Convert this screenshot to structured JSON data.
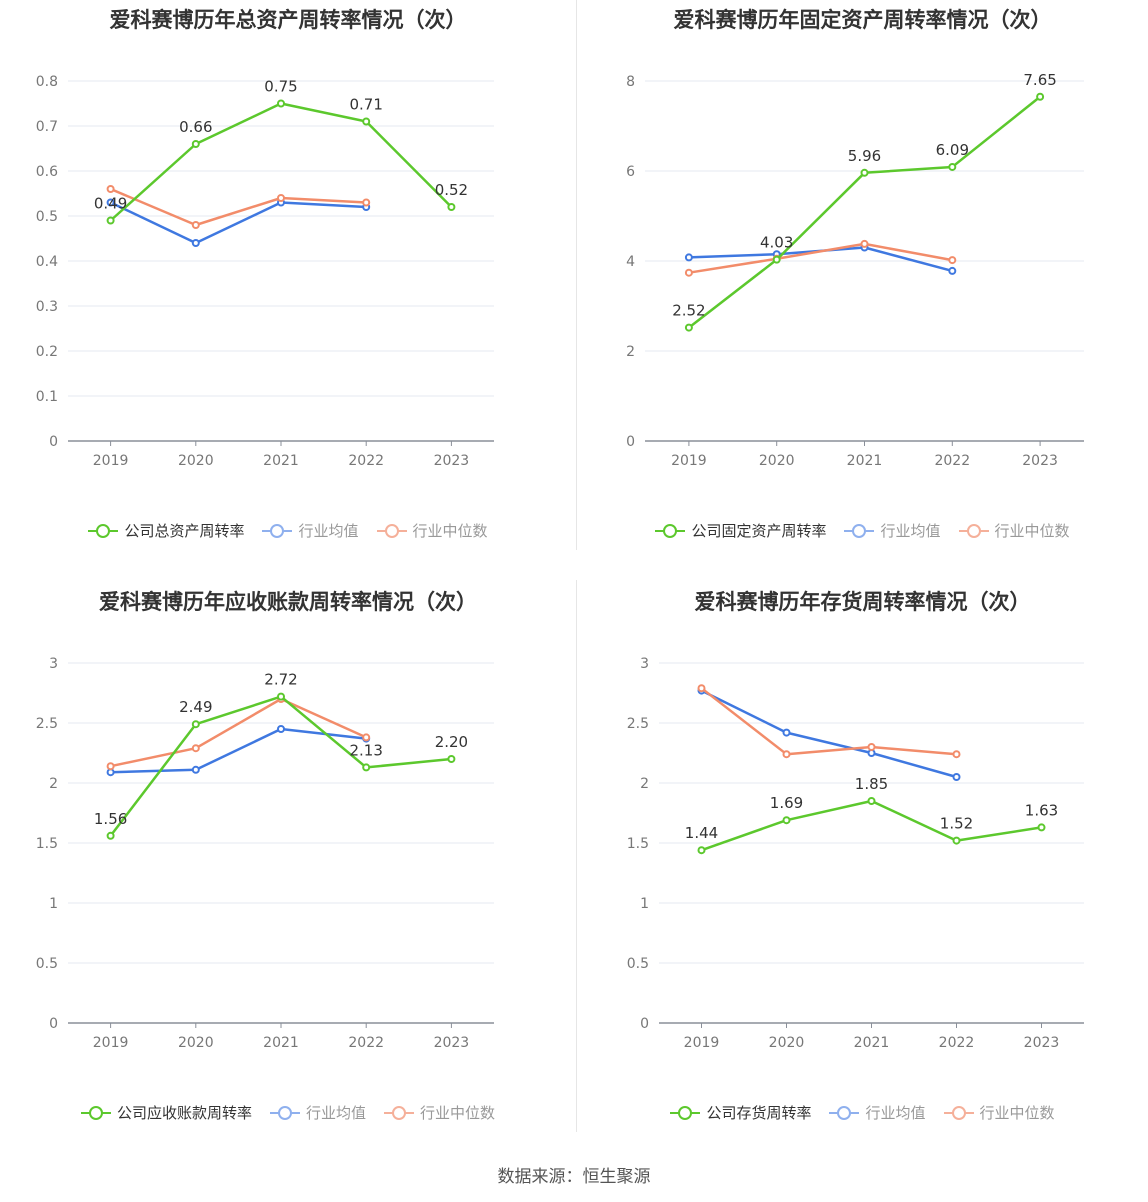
{
  "colors": {
    "company": "#5cc82d",
    "industry_avg": "#3f78e0",
    "industry_median": "#f28c6a"
  },
  "source": "数据来源：恒生聚源",
  "chart_data": [
    {
      "type": "line",
      "title": "爱科赛博历年总资产周转率情况（次）",
      "categories": [
        "2019",
        "2020",
        "2021",
        "2022",
        "2023"
      ],
      "ylim": [
        0,
        0.8
      ],
      "yticks": [
        "0",
        "0.1",
        "0.2",
        "0.3",
        "0.4",
        "0.5",
        "0.6",
        "0.7",
        "0.8"
      ],
      "series": [
        {
          "name": "公司总资产周转率",
          "values": [
            0.49,
            0.66,
            0.75,
            0.71,
            0.52
          ],
          "labels": [
            "0.49",
            "0.66",
            "0.75",
            "0.71",
            "0.52"
          ]
        },
        {
          "name": "行业均值",
          "values": [
            0.53,
            0.44,
            0.53,
            0.52,
            null
          ]
        },
        {
          "name": "行业中位数",
          "values": [
            0.56,
            0.48,
            0.54,
            0.53,
            null
          ]
        }
      ],
      "legend_position": "bottom"
    },
    {
      "type": "line",
      "title": "爱科赛博历年固定资产周转率情况（次）",
      "categories": [
        "2019",
        "2020",
        "2021",
        "2022",
        "2023"
      ],
      "ylim": [
        0,
        8
      ],
      "yticks": [
        "0",
        "2",
        "4",
        "6",
        "8"
      ],
      "series": [
        {
          "name": "公司固定资产周转率",
          "values": [
            2.52,
            4.03,
            5.96,
            6.09,
            7.65
          ],
          "labels": [
            "2.52",
            "4.03",
            "5.96",
            "6.09",
            "7.65"
          ]
        },
        {
          "name": "行业均值",
          "values": [
            4.08,
            4.15,
            4.3,
            3.78,
            null
          ]
        },
        {
          "name": "行业中位数",
          "values": [
            3.74,
            4.05,
            4.38,
            4.02,
            null
          ]
        }
      ],
      "legend_position": "bottom"
    },
    {
      "type": "line",
      "title": "爱科赛博历年应收账款周转率情况（次）",
      "categories": [
        "2019",
        "2020",
        "2021",
        "2022",
        "2023"
      ],
      "ylim": [
        0,
        3
      ],
      "yticks": [
        "0",
        "0.5",
        "1",
        "1.5",
        "2",
        "2.5",
        "3"
      ],
      "series": [
        {
          "name": "公司应收账款周转率",
          "values": [
            1.56,
            2.49,
            2.72,
            2.13,
            2.2
          ],
          "labels": [
            "1.56",
            "2.49",
            "2.72",
            "2.13",
            "2.20"
          ]
        },
        {
          "name": "行业均值",
          "values": [
            2.09,
            2.11,
            2.45,
            2.37,
            null
          ]
        },
        {
          "name": "行业中位数",
          "values": [
            2.14,
            2.29,
            2.7,
            2.38,
            null
          ]
        }
      ],
      "legend_position": "bottom"
    },
    {
      "type": "line",
      "title": "爱科赛博历年存货周转率情况（次）",
      "categories": [
        "2019",
        "2020",
        "2021",
        "2022",
        "2023"
      ],
      "ylim": [
        0,
        3
      ],
      "yticks": [
        "0",
        "0.5",
        "1",
        "1.5",
        "2",
        "2.5",
        "3"
      ],
      "series": [
        {
          "name": "公司存货周转率",
          "values": [
            1.44,
            1.69,
            1.85,
            1.52,
            1.63
          ],
          "labels": [
            "1.44",
            "1.69",
            "1.85",
            "1.52",
            "1.63"
          ]
        },
        {
          "name": "行业均值",
          "values": [
            2.77,
            2.42,
            2.25,
            2.05,
            null
          ]
        },
        {
          "name": "行业中位数",
          "values": [
            2.79,
            2.24,
            2.3,
            2.24,
            null
          ]
        }
      ],
      "legend_position": "bottom"
    }
  ]
}
